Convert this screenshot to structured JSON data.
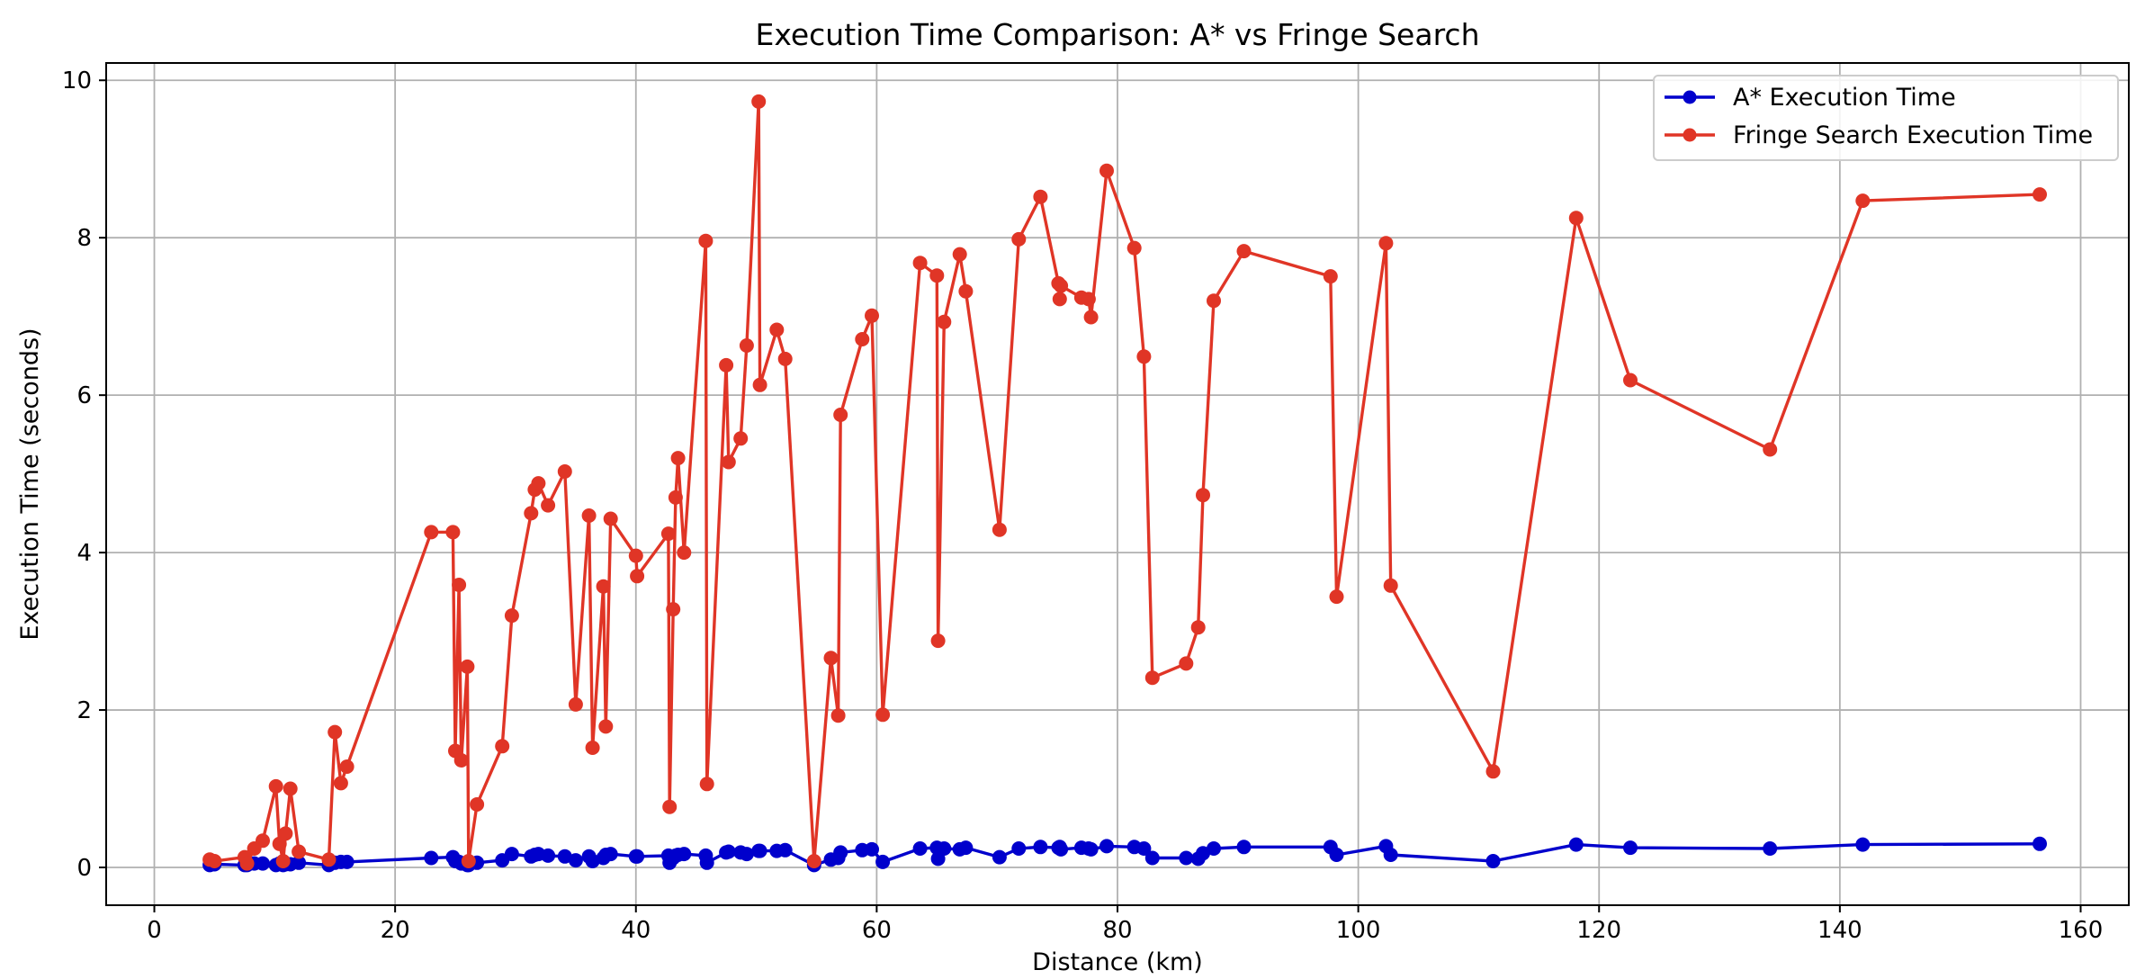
{
  "chart_data": {
    "type": "line",
    "title": "Execution Time Comparison: A* vs Fringe Search",
    "xlabel": "Distance (km)",
    "ylabel": "Execution Time (seconds)",
    "xlim": [
      -4,
      164
    ],
    "ylim": [
      -0.48,
      10.22
    ],
    "xticks": [
      "0",
      "20",
      "40",
      "60",
      "80",
      "100",
      "120",
      "140",
      "160"
    ],
    "yticks": [
      "0",
      "2",
      "4",
      "6",
      "8",
      "10"
    ],
    "grid": true,
    "legend_position": "top-right",
    "x": [
      4.6,
      5.0,
      7.5,
      7.7,
      8.3,
      9.0,
      10.1,
      10.4,
      10.7,
      10.9,
      11.3,
      12.0,
      14.5,
      15.0,
      15.5,
      16.0,
      23.0,
      24.8,
      25.0,
      25.3,
      25.5,
      26.0,
      26.1,
      26.8,
      28.9,
      29.7,
      31.3,
      31.6,
      31.9,
      32.7,
      34.1,
      35.0,
      36.1,
      36.4,
      37.3,
      37.5,
      37.9,
      40.0,
      40.1,
      42.7,
      42.8,
      43.1,
      43.3,
      43.5,
      44.0,
      45.8,
      45.9,
      47.5,
      47.7,
      48.7,
      49.2,
      50.2,
      50.3,
      51.7,
      52.4,
      54.8,
      56.2,
      56.8,
      57.0,
      58.8,
      59.6,
      60.5,
      63.6,
      65.0,
      65.1,
      65.6,
      66.9,
      67.4,
      70.2,
      71.8,
      73.6,
      75.1,
      75.2,
      75.3,
      77.0,
      77.6,
      77.8,
      79.1,
      81.4,
      82.2,
      82.9,
      85.7,
      86.7,
      87.1,
      88.0,
      90.5,
      97.7,
      98.2,
      102.3,
      102.7,
      111.2,
      118.1,
      122.6,
      134.2,
      141.9,
      156.6
    ],
    "series": [
      {
        "name": "A* Execution Time",
        "color": "#0000cc",
        "values": [
          0.03,
          0.04,
          0.03,
          0.03,
          0.05,
          0.05,
          0.03,
          0.05,
          0.03,
          0.04,
          0.04,
          0.06,
          0.03,
          0.06,
          0.07,
          0.07,
          0.12,
          0.13,
          0.08,
          0.07,
          0.05,
          0.03,
          0.03,
          0.06,
          0.09,
          0.17,
          0.14,
          0.16,
          0.17,
          0.15,
          0.14,
          0.09,
          0.14,
          0.08,
          0.12,
          0.16,
          0.17,
          0.14,
          0.14,
          0.15,
          0.06,
          0.12,
          0.15,
          0.16,
          0.17,
          0.15,
          0.06,
          0.19,
          0.2,
          0.19,
          0.17,
          0.21,
          0.21,
          0.21,
          0.22,
          0.03,
          0.1,
          0.12,
          0.19,
          0.22,
          0.23,
          0.07,
          0.24,
          0.25,
          0.11,
          0.24,
          0.23,
          0.25,
          0.13,
          0.24,
          0.26,
          0.25,
          0.26,
          0.23,
          0.25,
          0.24,
          0.23,
          0.27,
          0.26,
          0.24,
          0.12,
          0.12,
          0.11,
          0.18,
          0.24,
          0.26,
          0.26,
          0.16,
          0.27,
          0.16,
          0.08,
          0.29,
          0.25,
          0.24,
          0.29,
          0.3
        ]
      },
      {
        "name": "Fringe Search Execution Time",
        "color": "#e03526",
        "values": [
          0.1,
          0.08,
          0.13,
          0.05,
          0.24,
          0.34,
          1.03,
          0.3,
          0.08,
          0.43,
          1.0,
          0.2,
          0.1,
          1.72,
          1.07,
          1.28,
          4.26,
          4.26,
          1.48,
          3.59,
          1.36,
          2.55,
          0.08,
          0.8,
          1.54,
          3.2,
          4.5,
          4.8,
          4.88,
          4.6,
          5.03,
          2.07,
          4.47,
          1.52,
          3.57,
          1.79,
          4.43,
          3.96,
          3.7,
          4.24,
          0.77,
          3.28,
          4.7,
          5.2,
          4.0,
          7.96,
          1.06,
          6.38,
          5.15,
          5.45,
          6.63,
          9.73,
          6.13,
          6.83,
          6.46,
          0.08,
          2.66,
          1.93,
          5.75,
          6.71,
          7.01,
          1.94,
          7.68,
          7.52,
          2.88,
          6.93,
          7.79,
          7.32,
          4.29,
          7.98,
          8.52,
          7.42,
          7.22,
          7.39,
          7.24,
          7.22,
          6.99,
          8.85,
          7.87,
          6.49,
          2.41,
          2.59,
          3.05,
          4.73,
          7.2,
          7.83,
          7.51,
          3.44,
          7.93,
          3.58,
          1.22,
          8.25,
          6.19,
          5.31,
          8.47,
          8.55
        ]
      }
    ]
  }
}
